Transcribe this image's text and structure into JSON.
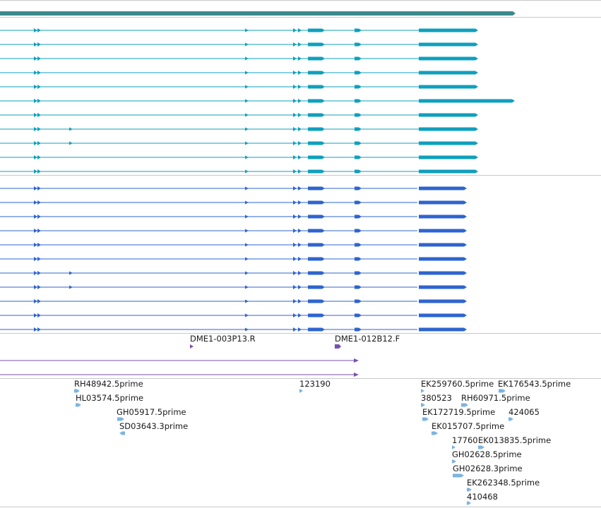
{
  "colors": {
    "gene": "#3a8a8c",
    "transcript_a": "#0ea0bd",
    "transcript_b": "#2e64cf",
    "primer": "#7a4fb2",
    "est": "#7cb3e3",
    "divider": "#c8c8c8"
  },
  "tracks": {
    "transcripts_a": {
      "name": "transcripts-track-a",
      "row_count": 11,
      "variant_rows": [
        7,
        8
      ],
      "long_tail_row": 5
    },
    "transcripts_b": {
      "name": "transcripts-track-b",
      "row_count": 11,
      "variant_rows": [
        6,
        7
      ]
    },
    "primers": {
      "labels": [
        "DME1-003P13.R",
        "DME1-012B12.F"
      ]
    },
    "ests": {
      "labels": [
        "RH48942.5prime",
        "HL03574.5prime",
        "GH05917.5prime",
        "SD03643.3prime",
        "123190",
        "EK259760.5prime",
        "EK176543.5prime",
        "380523",
        "RH60971.5prime",
        "EK172719.5prime",
        "424065",
        "EK015707.5prime",
        "17760",
        "EK013835.5prime",
        "GH02628.5prime",
        "GH02628.3prime",
        "EK262348.5prime",
        "410468"
      ]
    }
  }
}
